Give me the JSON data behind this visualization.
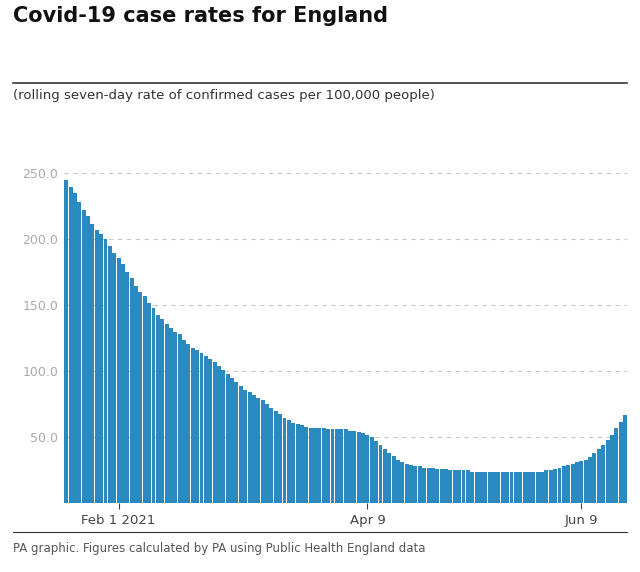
{
  "title": "Covid-19 case rates for England",
  "subtitle": "(rolling seven-day rate of confirmed cases per 100,000 people)",
  "footnote": "PA graphic. Figures calculated by PA using Public Health England data",
  "bar_color": "#2a8abf",
  "background_color": "#ffffff",
  "ylim": [
    0,
    260
  ],
  "yticks": [
    50.0,
    100.0,
    150.0,
    200.0,
    250.0
  ],
  "xtick_labels": [
    "Feb 1 2021",
    "Apr 9",
    "Jun 9"
  ],
  "xtick_positions": [
    12,
    69,
    118
  ],
  "values": [
    245,
    240,
    235,
    228,
    222,
    218,
    212,
    207,
    204,
    200,
    195,
    190,
    186,
    181,
    175,
    171,
    165,
    160,
    157,
    152,
    148,
    143,
    140,
    136,
    133,
    130,
    128,
    124,
    121,
    118,
    116,
    114,
    112,
    109,
    107,
    104,
    101,
    98,
    95,
    92,
    89,
    86,
    84,
    82,
    80,
    78,
    75,
    72,
    70,
    68,
    65,
    63,
    61,
    60,
    59,
    58,
    57,
    57,
    57,
    57,
    56,
    56,
    56,
    56,
    56,
    55,
    55,
    54,
    53,
    52,
    50,
    47,
    44,
    41,
    38,
    36,
    33,
    31,
    30,
    29,
    28,
    28,
    27,
    27,
    27,
    26,
    26,
    26,
    25,
    25,
    25,
    25,
    25,
    24,
    24,
    24,
    24,
    24,
    24,
    24,
    24,
    24,
    24,
    24,
    24,
    24,
    24,
    24,
    24,
    24,
    25,
    25,
    26,
    27,
    28,
    29,
    30,
    31,
    32,
    33,
    35,
    38,
    41,
    44,
    48,
    52,
    57,
    62,
    67
  ]
}
